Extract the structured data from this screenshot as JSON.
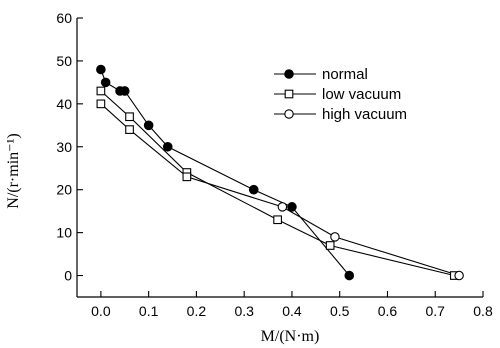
{
  "chart_data": {
    "type": "line",
    "title": "",
    "xlabel": "M/(N·m)",
    "ylabel": "N/(r·min⁻¹)",
    "xlim": [
      -0.05,
      0.8
    ],
    "ylim": [
      -5,
      60
    ],
    "x_ticks": [
      0.0,
      0.1,
      0.2,
      0.3,
      0.4,
      0.5,
      0.6,
      0.7,
      0.8
    ],
    "x_tick_labels": [
      "0.0",
      "0.1",
      "0.2",
      "0.3",
      "0.4",
      "0.5",
      "0.6",
      "0.7",
      "0.8"
    ],
    "y_ticks": [
      0,
      10,
      20,
      30,
      40,
      50,
      60
    ],
    "y_tick_labels": [
      "0",
      "10",
      "20",
      "30",
      "40",
      "50",
      "60"
    ],
    "grid": false,
    "legend_position": "top-right",
    "series": [
      {
        "name": "normal",
        "marker": "filled-circle",
        "points": [
          [
            0.0,
            48
          ],
          [
            0.01,
            45
          ],
          [
            0.04,
            43
          ],
          [
            0.05,
            43
          ],
          [
            0.1,
            35
          ],
          [
            0.14,
            30
          ],
          [
            0.32,
            20
          ],
          [
            0.4,
            16
          ],
          [
            0.52,
            0
          ]
        ]
      },
      {
        "name": "low vacuum",
        "marker": "open-square",
        "points": [
          [
            0.0,
            43
          ],
          [
            0.0,
            40
          ],
          [
            0.06,
            37
          ],
          [
            0.06,
            34
          ],
          [
            0.18,
            24
          ],
          [
            0.18,
            23
          ],
          [
            0.37,
            13
          ],
          [
            0.48,
            7
          ],
          [
            0.74,
            0
          ]
        ]
      },
      {
        "name": "high vacuum",
        "marker": "open-circle",
        "points": [
          [
            0.38,
            16
          ],
          [
            0.49,
            9
          ],
          [
            0.75,
            0
          ]
        ]
      }
    ],
    "links": [
      [
        [
          0,
          0
        ],
        [
          0,
          1
        ],
        [
          0,
          2
        ],
        [
          0,
          3
        ],
        [
          0,
          4
        ],
        [
          0,
          5
        ],
        [
          0,
          6
        ],
        [
          0,
          7
        ],
        [
          0,
          8
        ]
      ],
      [
        [
          1,
          0
        ],
        [
          1,
          2
        ],
        [
          1,
          4
        ],
        [
          1,
          6
        ],
        [
          1,
          7
        ],
        [
          1,
          8
        ]
      ],
      [
        [
          1,
          1
        ],
        [
          1,
          3
        ],
        [
          1,
          5
        ],
        [
          2,
          0
        ],
        [
          2,
          1
        ],
        [
          2,
          2
        ]
      ]
    ]
  }
}
